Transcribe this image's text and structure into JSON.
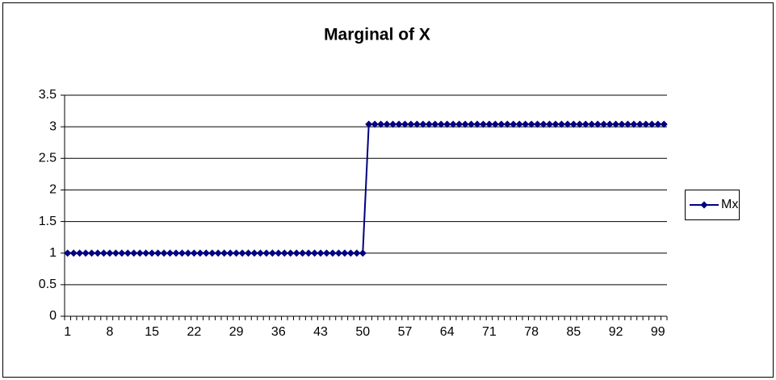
{
  "chart_data": {
    "type": "line",
    "title": "Marginal of X",
    "categories": [
      "1",
      null,
      null,
      null,
      null,
      null,
      null,
      "8",
      null,
      null,
      null,
      null,
      null,
      null,
      "15",
      null,
      null,
      null,
      null,
      null,
      null,
      "22",
      null,
      null,
      null,
      null,
      null,
      null,
      "29",
      null,
      null,
      null,
      null,
      null,
      null,
      "36",
      null,
      null,
      null,
      null,
      null,
      null,
      "43",
      null,
      null,
      null,
      null,
      null,
      null,
      "50",
      null,
      null,
      null,
      null,
      null,
      null,
      "57",
      null,
      null,
      null,
      null,
      null,
      null,
      "64",
      null,
      null,
      null,
      null,
      null,
      null,
      "71",
      null,
      null,
      null,
      null,
      null,
      null,
      "78",
      null,
      null,
      null,
      null,
      null,
      null,
      "85",
      null,
      null,
      null,
      null,
      null,
      null,
      "92",
      null,
      null,
      null,
      null,
      null,
      null,
      "99",
      null
    ],
    "series": [
      {
        "name": "Mx",
        "color": "#000080",
        "values": [
          1,
          1,
          1,
          1,
          1,
          1,
          1,
          1,
          1,
          1,
          1,
          1,
          1,
          1,
          1,
          1,
          1,
          1,
          1,
          1,
          1,
          1,
          1,
          1,
          1,
          1,
          1,
          1,
          1,
          1,
          1,
          1,
          1,
          1,
          1,
          1,
          1,
          1,
          1,
          1,
          1,
          1,
          1,
          1,
          1,
          1,
          1,
          1,
          1,
          1,
          3.04,
          3.04,
          3.04,
          3.04,
          3.04,
          3.04,
          3.04,
          3.04,
          3.04,
          3.04,
          3.04,
          3.04,
          3.04,
          3.04,
          3.04,
          3.04,
          3.04,
          3.04,
          3.04,
          3.04,
          3.04,
          3.04,
          3.04,
          3.04,
          3.04,
          3.04,
          3.04,
          3.04,
          3.04,
          3.04,
          3.04,
          3.04,
          3.04,
          3.04,
          3.04,
          3.04,
          3.04,
          3.04,
          3.04,
          3.04,
          3.04,
          3.04,
          3.04,
          3.04,
          3.04,
          3.04,
          3.04,
          3.04,
          3.04,
          3.04
        ]
      }
    ],
    "ylim": [
      0,
      3.5
    ],
    "yticks": [
      0,
      0.5,
      1,
      1.5,
      2,
      2.5,
      3,
      3.5
    ],
    "grid": true,
    "legend": "right"
  }
}
